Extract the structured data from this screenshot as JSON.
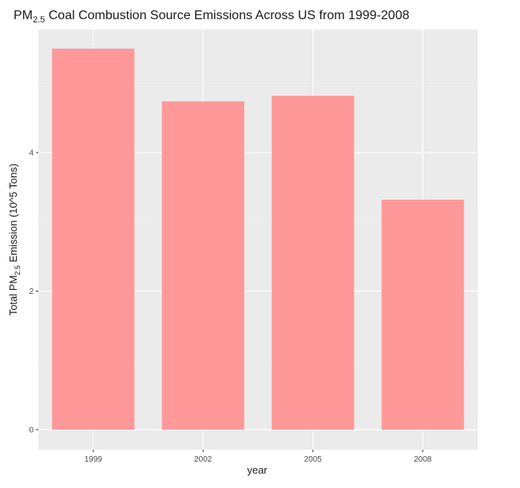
{
  "chart_data": {
    "type": "bar",
    "title": {
      "prefix": "PM",
      "subscript": "2.5",
      "suffix": " Coal Combustion Source Emissions Across US from 1999-2008"
    },
    "xlabel": "year",
    "ylabel": {
      "prefix": "Total PM",
      "subscript": "2.5",
      "suffix": " Emission (10^5 Tons)"
    },
    "categories": [
      "1999",
      "2002",
      "2005",
      "2008"
    ],
    "values": [
      5.5,
      4.74,
      4.82,
      3.32
    ],
    "yticks": [
      0,
      2,
      4
    ],
    "ytick_labels": [
      "0",
      "2",
      "4"
    ],
    "ylim": [
      0,
      5.78
    ],
    "grid": true,
    "colors": {
      "bar": "#ff9999",
      "panel": "#ebebeb",
      "grid_major": "#ffffff",
      "grid_minor": "#f5f5f5",
      "tick": "#333333"
    }
  }
}
